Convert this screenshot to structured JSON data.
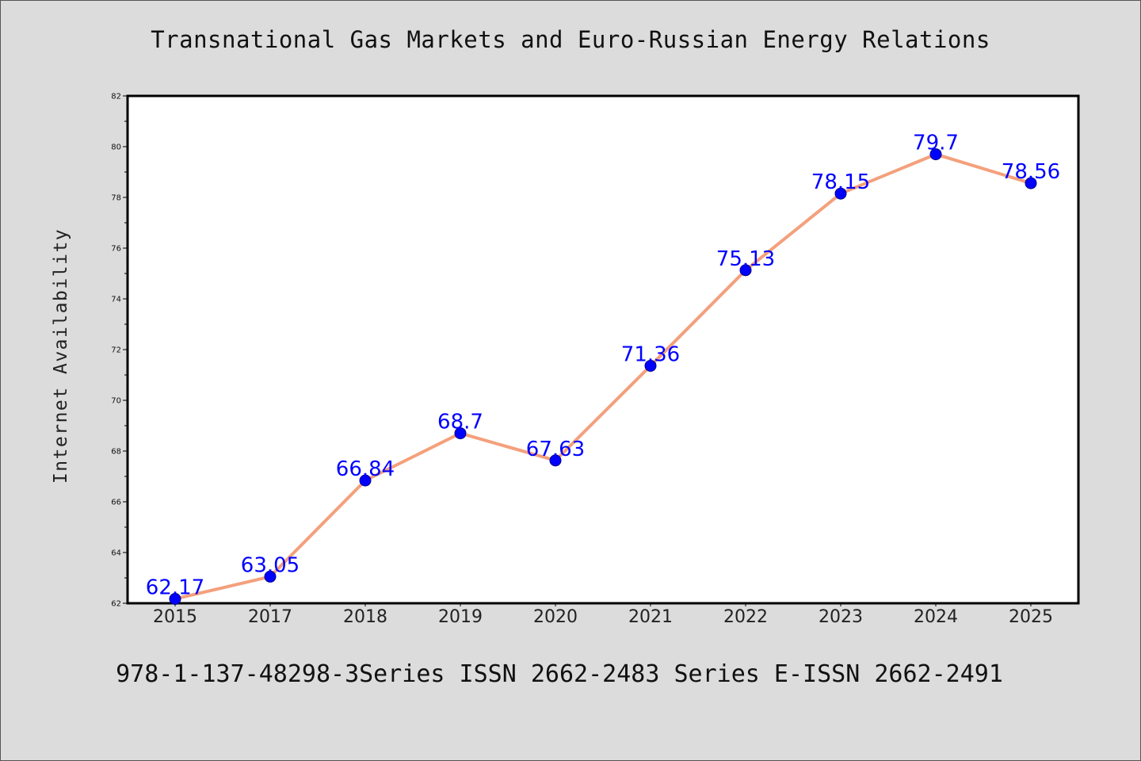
{
  "chart_data": {
    "type": "line",
    "title": "Transnational Gas Markets and Euro-Russian Energy Relations",
    "xlabel": "",
    "ylabel": "Internet Availability",
    "categories": [
      "2015",
      "2017",
      "2018",
      "2019",
      "2020",
      "2021",
      "2022",
      "2023",
      "2024",
      "2025"
    ],
    "series": [
      {
        "values": [
          62.17,
          63.05,
          66.84,
          68.7,
          67.63,
          71.36,
          75.13,
          78.15,
          79.7,
          78.56
        ],
        "data_labels": [
          "62.17",
          "63.05",
          "66.84",
          "68.7",
          "67.63",
          "71.36",
          "75.13",
          "78.15",
          "79.7",
          "78.56"
        ]
      }
    ],
    "ylim": [
      62,
      82
    ],
    "yticks": [
      62,
      64,
      66,
      68,
      70,
      72,
      74,
      76,
      78,
      80,
      82
    ],
    "grid": false,
    "legend": "none",
    "colors": {
      "line": "#f4a07c",
      "marker": "#0000ff",
      "data_label": "#0000ff",
      "plot_background": "#ffffff",
      "page_background": "#dcdcdc"
    }
  },
  "footer_text": "978-1-137-48298-3Series ISSN 2662-2483 Series E-ISSN 2662-2491"
}
